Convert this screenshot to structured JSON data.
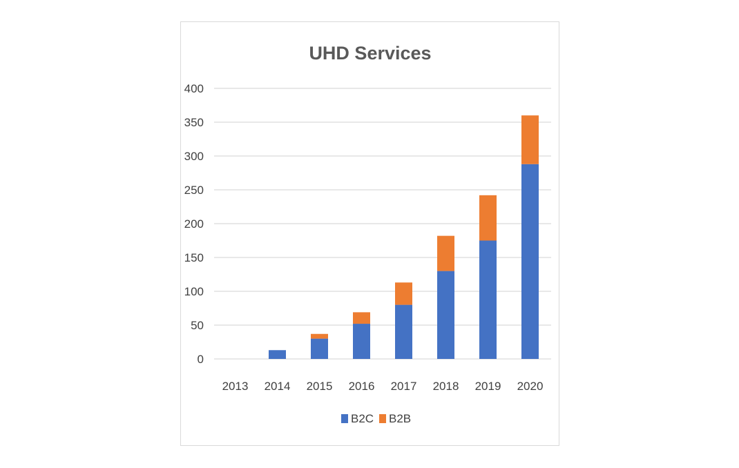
{
  "chart_data": {
    "type": "bar",
    "stacked": true,
    "title": "UHD Services",
    "xlabel": "",
    "ylabel": "",
    "categories": [
      "2013",
      "2014",
      "2015",
      "2016",
      "2017",
      "2018",
      "2019",
      "2020"
    ],
    "series": [
      {
        "name": "B2C",
        "color": "#4472c4",
        "values": [
          0,
          13,
          30,
          52,
          80,
          130,
          175,
          288
        ]
      },
      {
        "name": "B2B",
        "color": "#ed7d31",
        "values": [
          0,
          0,
          7,
          17,
          33,
          52,
          67,
          72
        ]
      }
    ],
    "ylim": [
      0,
      400
    ],
    "yticks": [
      0,
      50,
      100,
      150,
      200,
      250,
      300,
      350,
      400
    ],
    "grid": true,
    "legend_position": "bottom"
  }
}
